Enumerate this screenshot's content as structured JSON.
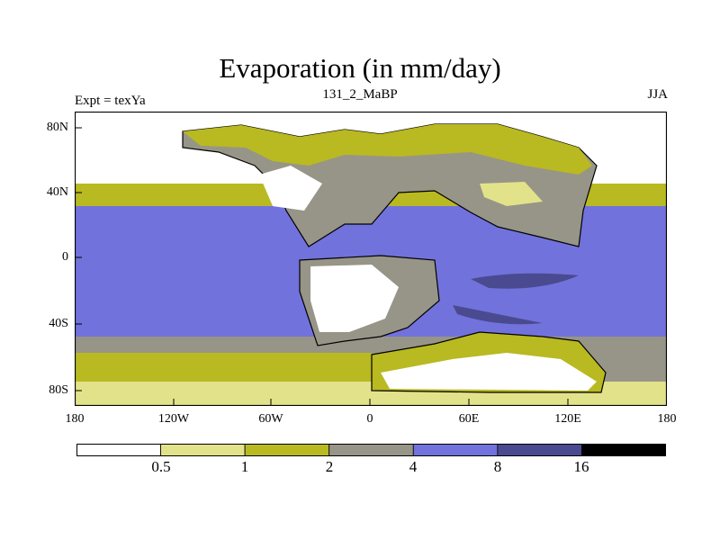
{
  "header": {
    "title": "Evaporation (in mm/day)",
    "experiment": "Expt = texYa",
    "period": "131_2_MaBP",
    "season": "JJA"
  },
  "map": {
    "lat_ticks": [
      "80N",
      "40N",
      "0",
      "40S",
      "80S"
    ],
    "lon_ticks": [
      "180",
      "120W",
      "60W",
      "0",
      "60E",
      "120E",
      "180"
    ]
  },
  "colorbar": {
    "levels": [
      "0.5",
      "1",
      "2",
      "4",
      "8",
      "16"
    ],
    "colors": [
      "#ffffff",
      "#e2e28a",
      "#b9b921",
      "#979588",
      "#7272dd",
      "#4a4a90",
      "#000000"
    ]
  }
}
